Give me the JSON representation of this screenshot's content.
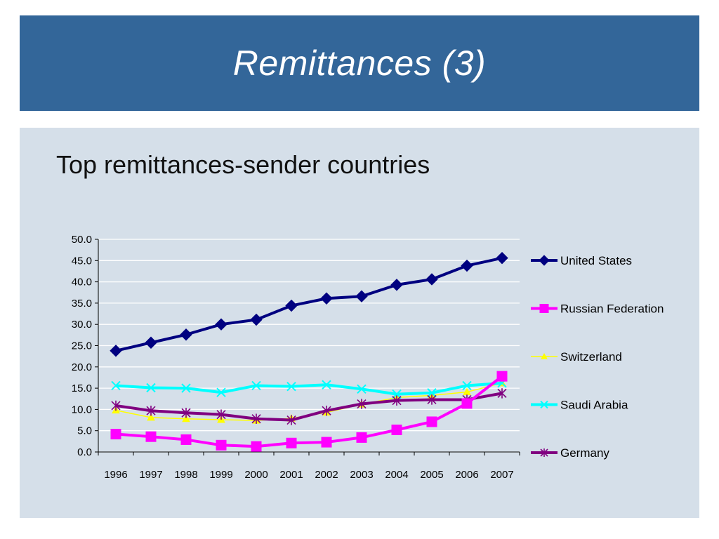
{
  "slide": {
    "title": "Remittances (3)",
    "subtitle": "Top remittances-sender countries"
  },
  "colors": {
    "title_bar": "#336699",
    "panel": "#d5dfe9"
  },
  "chart_data": {
    "type": "line",
    "title": "",
    "xlabel": "",
    "ylabel": "",
    "ylim": [
      0,
      50
    ],
    "yticks": [
      "0.0",
      "5.0",
      "10.0",
      "15.0",
      "20.0",
      "25.0",
      "30.0",
      "35.0",
      "40.0",
      "45.0",
      "50.0"
    ],
    "grid": "horizontal",
    "legend_position": "right",
    "categories": [
      "1996",
      "1997",
      "1998",
      "1999",
      "2000",
      "2001",
      "2002",
      "2003",
      "2004",
      "2005",
      "2006",
      "2007"
    ],
    "series": [
      {
        "name": "United States",
        "color": "#000080",
        "marker": "diamond",
        "values": [
          23.8,
          25.7,
          27.6,
          30.0,
          31.1,
          34.4,
          36.1,
          36.6,
          39.3,
          40.6,
          43.8,
          45.6
        ]
      },
      {
        "name": "Russian Federation",
        "color": "#ff00ff",
        "marker": "square",
        "values": [
          4.2,
          3.6,
          2.9,
          1.6,
          1.3,
          2.1,
          2.3,
          3.4,
          5.2,
          7.1,
          11.4,
          17.8
        ]
      },
      {
        "name": "Switzerland",
        "color": "#ffff00",
        "marker": "triangle",
        "values": [
          9.8,
          8.1,
          7.8,
          7.6,
          7.4,
          7.9,
          9.3,
          11.2,
          12.8,
          13.3,
          14.1,
          16.2
        ]
      },
      {
        "name": "Saudi Arabia",
        "color": "#00ffff",
        "marker": "x",
        "values": [
          15.6,
          15.1,
          15.0,
          14.0,
          15.6,
          15.4,
          15.8,
          14.8,
          13.6,
          13.9,
          15.6,
          16.2
        ]
      },
      {
        "name": "Germany",
        "color": "#800080",
        "marker": "asterisk",
        "values": [
          10.9,
          9.7,
          9.2,
          8.8,
          7.8,
          7.5,
          9.7,
          11.3,
          12.1,
          12.3,
          12.3,
          13.8
        ]
      }
    ]
  }
}
